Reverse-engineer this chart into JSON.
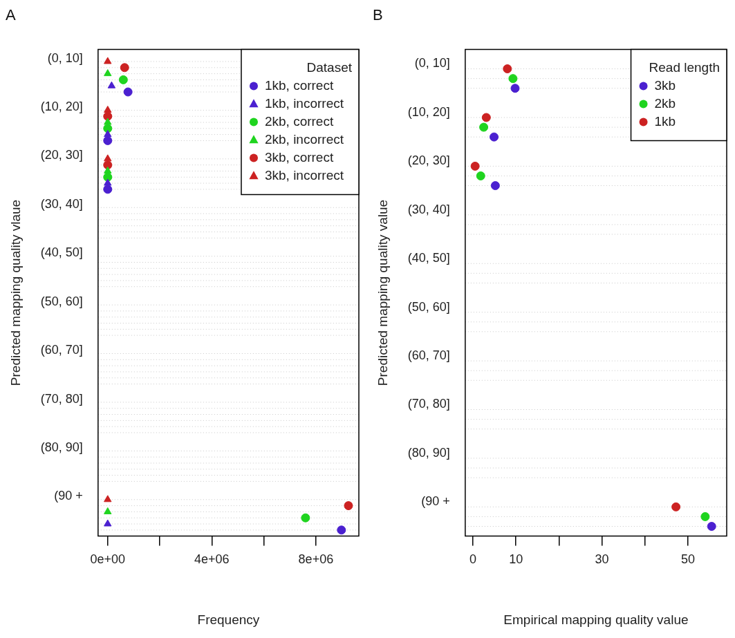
{
  "chart_data": [
    {
      "type": "scatter",
      "title": "A",
      "orientation": "horizontal",
      "xlabel": "Frequency",
      "ylabel": "Predicted mapping quality vlaue",
      "legend_title": "Dataset",
      "legend": "top right",
      "grid": "y",
      "categories": [
        "(0, 10]",
        "(10, 20]",
        "(20, 30]",
        "(30, 40]",
        "(40, 50]",
        "(50, 60]",
        "(60, 70]",
        "(70, 80]",
        "(80, 90]",
        "(90 +"
      ],
      "xlim": [
        -370000,
        9650000
      ],
      "xticks": [
        {
          "value": 0,
          "label": "0e+00"
        },
        {
          "value": 2000000,
          "label": null
        },
        {
          "value": 4000000,
          "label": "4e+06"
        },
        {
          "value": 6000000,
          "label": null
        },
        {
          "value": 8000000,
          "label": "8e+06"
        }
      ],
      "series": [
        {
          "name": "1kb, correct",
          "color": "#4b20d0",
          "marker": "circle",
          "values": [
            780000,
            0,
            0,
            null,
            null,
            null,
            null,
            null,
            null,
            8980000
          ]
        },
        {
          "name": "1kb, incorrect",
          "color": "#4b20d0",
          "marker": "triangle",
          "values": [
            150000,
            0,
            0,
            null,
            null,
            null,
            null,
            null,
            null,
            0
          ]
        },
        {
          "name": "2kb, correct",
          "color": "#1fd41f",
          "marker": "circle",
          "values": [
            600000,
            0,
            0,
            null,
            null,
            null,
            null,
            null,
            null,
            7600000
          ]
        },
        {
          "name": "2kb, incorrect",
          "color": "#1fd41f",
          "marker": "triangle",
          "values": [
            0,
            0,
            0,
            null,
            null,
            null,
            null,
            null,
            null,
            0
          ]
        },
        {
          "name": "3kb, correct",
          "color": "#cc2222",
          "marker": "circle",
          "values": [
            650000,
            0,
            0,
            null,
            null,
            null,
            null,
            null,
            null,
            9250000
          ]
        },
        {
          "name": "3kb, incorrect",
          "color": "#cc2222",
          "marker": "triangle",
          "values": [
            0,
            0,
            0,
            null,
            null,
            null,
            null,
            null,
            null,
            0
          ]
        }
      ]
    },
    {
      "type": "scatter",
      "title": "B",
      "orientation": "horizontal",
      "xlabel": "Empirical mapping quality value",
      "ylabel": "Predicted mapping quality value",
      "legend_title": "Read length",
      "legend": "top right",
      "grid": "y",
      "categories": [
        "(0, 10]",
        "(10, 20]",
        "(20, 30]",
        "(30, 40]",
        "(40, 50]",
        "(50, 60]",
        "(60, 70]",
        "(70, 80]",
        "(80, 90]",
        "(90 +"
      ],
      "xlim": [
        -1.8,
        59
      ],
      "xticks": [
        0,
        10,
        {
          "value": 20,
          "label": null
        },
        30,
        {
          "value": 40,
          "label": null
        },
        50
      ],
      "series": [
        {
          "name": "3kb",
          "color": "#4b20d0",
          "marker": "circle",
          "values": [
            9.8,
            4.9,
            5.2,
            null,
            null,
            null,
            null,
            null,
            null,
            55.5
          ]
        },
        {
          "name": "2kb",
          "color": "#1fd41f",
          "marker": "circle",
          "values": [
            9.3,
            2.5,
            1.8,
            null,
            null,
            null,
            null,
            null,
            null,
            54
          ]
        },
        {
          "name": "1kb",
          "color": "#cc2222",
          "marker": "circle",
          "values": [
            8.0,
            3.1,
            0.5,
            null,
            null,
            null,
            null,
            null,
            null,
            47.2
          ]
        }
      ]
    }
  ]
}
